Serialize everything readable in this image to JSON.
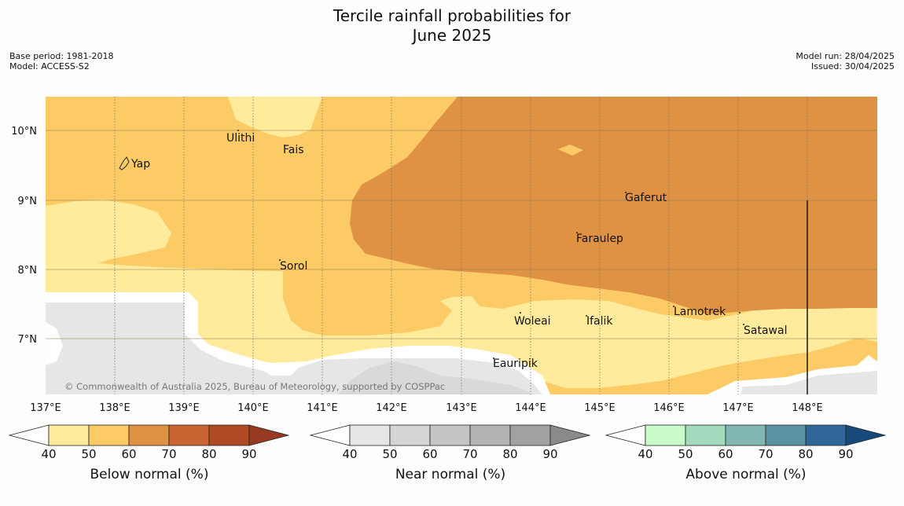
{
  "title_line1": "Tercile rainfall probabilities for",
  "title_line2": "June 2025",
  "meta_left": [
    "Base period: 1981-2018",
    "Model: ACCESS-S2"
  ],
  "meta_right": [
    "Model run: 28/04/2025",
    "Issued: 30/04/2025"
  ],
  "copyright": "© Commonwealth of Australia 2025, Bureau of Meteorology, supported by COSPPac",
  "lat_labels": [
    "10°N",
    "9°N",
    "8°N",
    "7°N"
  ],
  "lon_labels": [
    "137°E",
    "138°E",
    "139°E",
    "140°E",
    "141°E",
    "142°E",
    "143°E",
    "144°E",
    "145°E",
    "146°E",
    "147°E",
    "148°E"
  ],
  "places": [
    "Ulithi",
    "Fais",
    "Yap",
    "Gaferut",
    "Faraulep",
    "Sorol",
    "Lamotrek",
    "Woleai",
    "Ifalik",
    "Satawal",
    "Eauripik"
  ],
  "colorbars": [
    {
      "label": "Below normal (%)",
      "ticks": [
        "40",
        "50",
        "60",
        "70",
        "80",
        "90"
      ],
      "colors": [
        "#ffeb9b",
        "#fdcb66",
        "#df9144",
        "#ca6332",
        "#b04a25",
        "#983a21"
      ]
    },
    {
      "label": "Near normal (%)",
      "ticks": [
        "40",
        "50",
        "60",
        "70",
        "80",
        "90"
      ],
      "colors": [
        "#e6e6e6",
        "#d5d5d5",
        "#c5c5c5",
        "#b3b3b3",
        "#a1a1a1",
        "#8a8a8a"
      ]
    },
    {
      "label": "Above normal (%)",
      "ticks": [
        "40",
        "50",
        "60",
        "70",
        "80",
        "90"
      ],
      "colors": [
        "#c9fbcb",
        "#a3d9bd",
        "#82b7b1",
        "#5b93a2",
        "#306799",
        "#18497d"
      ]
    }
  ],
  "colors": {
    "below_40_50": "#ffeb9b",
    "below_50_60": "#fdcb66",
    "below_60_70": "#df9144",
    "near_40_50": "#e6e6e6",
    "near_50_60": "#d9d9d9"
  }
}
